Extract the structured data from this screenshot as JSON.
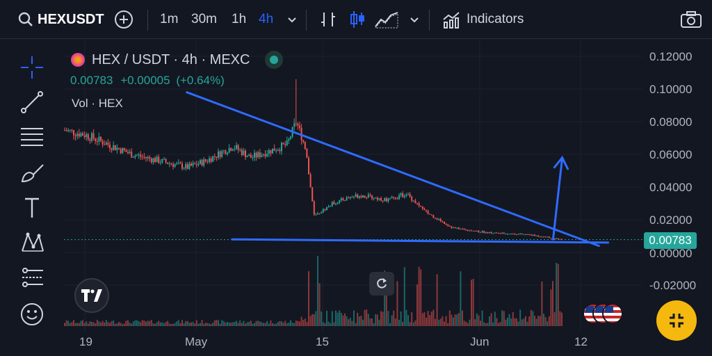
{
  "toolbar": {
    "symbol": "HEXUSDT",
    "intervals": [
      "1m",
      "30m",
      "1h",
      "4h"
    ],
    "active_interval": "4h",
    "indicators_label": "Indicators"
  },
  "legend": {
    "title": "HEX / USDT · 4h · MEXC",
    "last": "0.00783",
    "change": "+0.00005",
    "change_pct": "(+0.64%)",
    "volume_label": "Vol · HEX"
  },
  "price_axis": {
    "ticks": [
      "0.12000",
      "0.10000",
      "0.08000",
      "0.06000",
      "0.04000",
      "0.02000",
      "0.00000",
      "-0.02000"
    ],
    "last_price": "0.00783"
  },
  "time_axis": {
    "ticks": [
      "19",
      "May",
      "15",
      "Jun",
      "12"
    ]
  },
  "side_tag": "1",
  "colors": {
    "up": "#26a69a",
    "down": "#ef5350",
    "trendline": "#2f6bff",
    "accent": "#2962ff",
    "fab": "#f5b80e"
  },
  "chart_data": {
    "type": "candlestick",
    "x": [
      "19",
      "May",
      "15",
      "Jun",
      "12"
    ],
    "ylim": [
      -0.03,
      0.125
    ],
    "last_value": 0.00783,
    "close_path": [
      {
        "x": "Apr 15",
        "y": 0.077
      },
      {
        "x": "Apr 19",
        "y": 0.072
      },
      {
        "x": "Apr 24",
        "y": 0.06
      },
      {
        "x": "Apr 30",
        "y": 0.052
      },
      {
        "x": "May 2",
        "y": 0.056
      },
      {
        "x": "May 5",
        "y": 0.065
      },
      {
        "x": "May 7",
        "y": 0.058
      },
      {
        "x": "May 11",
        "y": 0.066
      },
      {
        "x": "May 12",
        "y": 0.08
      },
      {
        "x": "May 13",
        "y": 0.065
      },
      {
        "x": "May 14",
        "y": 0.022
      },
      {
        "x": "May 16",
        "y": 0.03
      },
      {
        "x": "May 18",
        "y": 0.034
      },
      {
        "x": "May 19",
        "y": 0.035
      },
      {
        "x": "May 22",
        "y": 0.032
      },
      {
        "x": "May 24",
        "y": 0.036
      },
      {
        "x": "May 26",
        "y": 0.025
      },
      {
        "x": "May 29",
        "y": 0.015
      },
      {
        "x": "Jun 2",
        "y": 0.012
      },
      {
        "x": "Jun 6",
        "y": 0.011
      },
      {
        "x": "Jun 10",
        "y": 0.008
      }
    ],
    "spike_high": 0.106,
    "drawings": [
      {
        "name": "descending-trendline",
        "from": {
          "x": "Apr 30",
          "y": 0.098
        },
        "to": {
          "x": "Jun 14",
          "y": 0.004
        }
      },
      {
        "name": "support-line",
        "from": {
          "x": "May 5",
          "y": 0.008
        },
        "to": {
          "x": "Jun 15",
          "y": 0.006
        }
      },
      {
        "name": "breakout-arrow",
        "from": {
          "x": "Jun 9",
          "y": 0.008
        },
        "to": {
          "x": "Jun 10",
          "y": 0.058
        }
      }
    ]
  }
}
